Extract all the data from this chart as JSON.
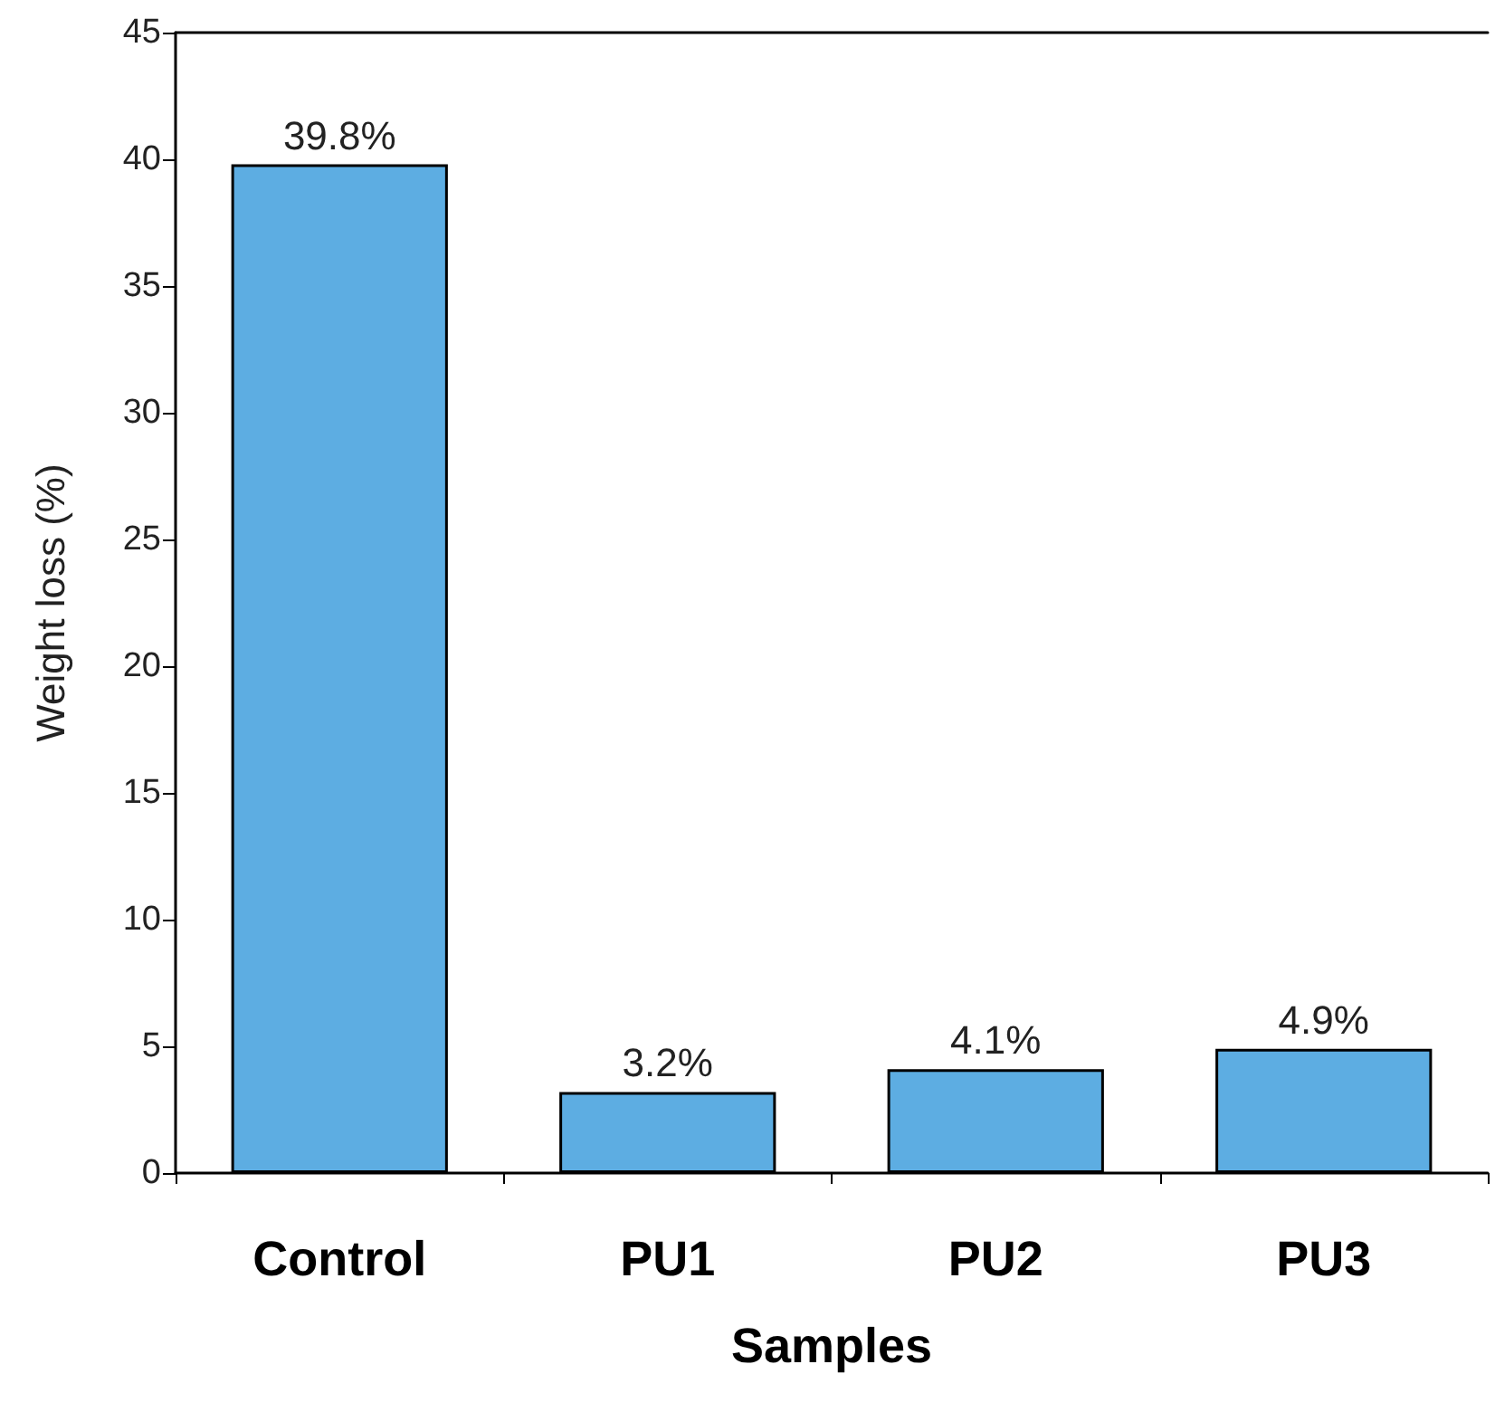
{
  "chart_data": {
    "type": "bar",
    "xlabel": "Samples",
    "ylabel": "Weight loss (%)",
    "categories": [
      "Control",
      "PU1",
      "PU2",
      "PU3"
    ],
    "values": [
      39.8,
      3.2,
      4.1,
      4.9
    ],
    "value_labels": [
      "39.8%",
      "3.2%",
      "4.1%",
      "4.9%"
    ],
    "color": "#5dade2",
    "ylim": [
      0,
      45
    ],
    "yticks": [
      0,
      5,
      10,
      15,
      20,
      25,
      30,
      35,
      40,
      45
    ],
    "grid": false
  }
}
